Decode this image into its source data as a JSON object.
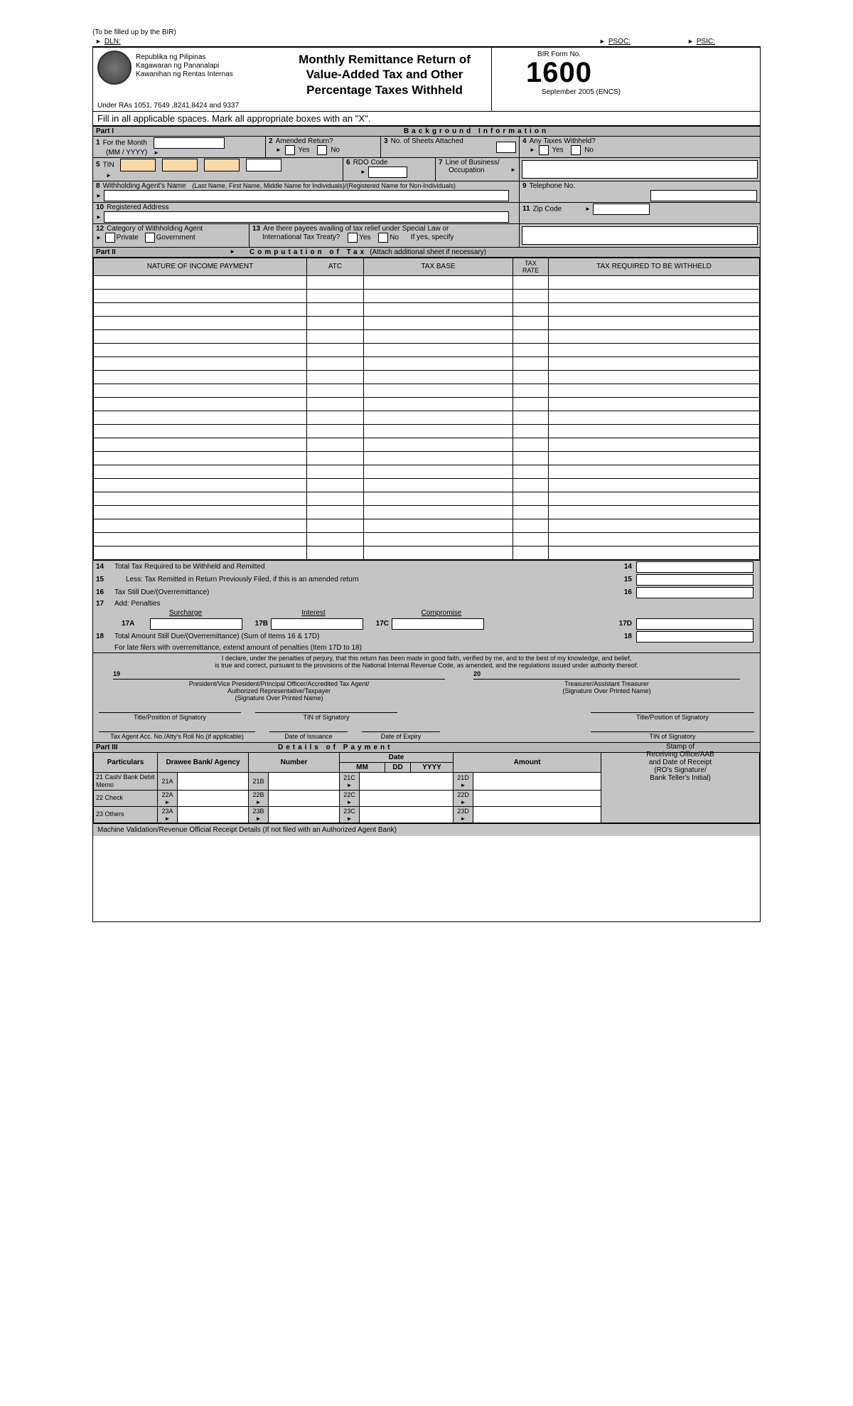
{
  "topnote": "(To be filled up by the BIR)",
  "top": {
    "dln": "DLN:",
    "psoc": "PSOC:",
    "psic": "PSIC:"
  },
  "agency": {
    "l1": "Republika ng Pilipinas",
    "l2": "Kagawaran ng Pananalapi",
    "l3": "Kawanihan ng Rentas Internas"
  },
  "title": {
    "l1": "Monthly Remittance Return of",
    "l2": "Value-Added Tax  and Other",
    "l3": "Percentage Taxes Withheld"
  },
  "formno": {
    "lbl": "BIR Form No.",
    "num": "1600",
    "rev": "September 2005 (ENCS)"
  },
  "under_ra": "Under RAs 1051, 7649 ,8241,8424 and 9337",
  "instr": "Fill in all applicable spaces. Mark all appropriate boxes with an \"X\".",
  "part1": {
    "name": "Part I",
    "title": "Background Information"
  },
  "f1": {
    "label": "For the Month",
    "sub": "(MM / YYYY)"
  },
  "f2": {
    "label": "Amended Return?",
    "yes": "Yes",
    "no": "No"
  },
  "f3": {
    "label": "No. of Sheets Attached"
  },
  "f4": {
    "label": "Any Taxes Withheld?",
    "yes": "Yes",
    "no": "No"
  },
  "f5": {
    "label": "TIN"
  },
  "f6": {
    "label": "RDO Code"
  },
  "f7": {
    "label": "Line of Business/",
    "sub": "Occupation"
  },
  "f8": {
    "label": "Withholding Agent's Name",
    "hint": "(Last Name, First Name, Middle Name for Individuals)/(Registered Name for Non-Individuals)"
  },
  "f9": {
    "label": "Telephone No."
  },
  "f10": {
    "label": "Registered Address"
  },
  "f11": {
    "label": "Zip Code"
  },
  "f12": {
    "label": "Category of Withholding Agent",
    "priv": "Private",
    "gov": "Government"
  },
  "f13": {
    "label": "Are there payees availing of tax relief under Special Law or",
    "sub": "International Tax Treaty?",
    "yes": "Yes",
    "no": "No",
    "spec": "If yes, specify"
  },
  "part2": {
    "name": "Part II",
    "title": "Computation of Tax",
    "hint": "(Attach additional sheet if necessary)"
  },
  "comp_headers": {
    "nature": "NATURE OF INCOME PAYMENT",
    "atc": "ATC",
    "base": "TAX BASE",
    "rate": "TAX RATE",
    "req": "TAX REQUIRED TO BE WITHHELD"
  },
  "comp_rows": 21,
  "tot14": {
    "text": "Total Tax Required to be Withheld and Remitted",
    "rn": "14"
  },
  "tot15": {
    "text": "Less: Tax Remitted in Return Previously Filed, if this is an amended return",
    "rn": "15"
  },
  "tot16": {
    "text": "Tax  Still Due/(Overremittance)",
    "rn": "16"
  },
  "tot17": {
    "text": "Add:  Penalties",
    "surch": "Surcharge",
    "int": "Interest",
    "comp": "Compromise"
  },
  "tot18": {
    "text": "Total Amount Still Due/(Overremittance) (Sum of Items 16 & 17D)",
    "rn": "18",
    "late": "For late filers with overremittance, extend amount of penalties (Item 17D to 18)"
  },
  "declare": {
    "l1": "I declare, under the penalties of perjury, that this return has been made in good faith, verified by me, and to the best of my knowledge, and belief,",
    "l2": "is true and correct, pursuant to the provisions of the National Internal Revenue Code, as amended, and the regulations issued under authority thereof."
  },
  "sig": {
    "n19": "19",
    "n20": "20",
    "left1": "President/Vice President/Principal Officer/Accredited Tax Agent/",
    "left2": "Authorized Representative/Taxpayer",
    "left3": "(Signature Over Printed Name)",
    "right1": "Treasurer/Assistant Treasurer",
    "right2": "(Signature Over Printed Name)",
    "title": "Title/Position of Signatory",
    "tin": "TIN of Signatory",
    "taxagent": "Tax Agent Acc. No./Atty's Roll No.(if applicable)",
    "doi": "Date of Issuance",
    "doe": "Date of Expiry"
  },
  "part3": {
    "name": "Part III",
    "title": "Details of Payment"
  },
  "pay": {
    "particulars": "Particulars",
    "bank": "Drawee Bank/ Agency",
    "number": "Number",
    "date": "Date",
    "mm": "MM",
    "dd": "DD",
    "yyyy": "YYYY",
    "amount": "Amount",
    "stamp1": "Stamp of",
    "stamp2": "Receiving Office/AAB",
    "stamp3": "and Date of Receipt",
    "stamp4": "(RO's Signature/",
    "stamp5": "Bank Teller's Initial)",
    "r21": "Cash/ Bank Debit Memo",
    "r22": "Check",
    "r23": "Others"
  },
  "mv": "Machine Validation/Revenue Official Receipt Details (If not filed with an Authorized Agent Bank)"
}
